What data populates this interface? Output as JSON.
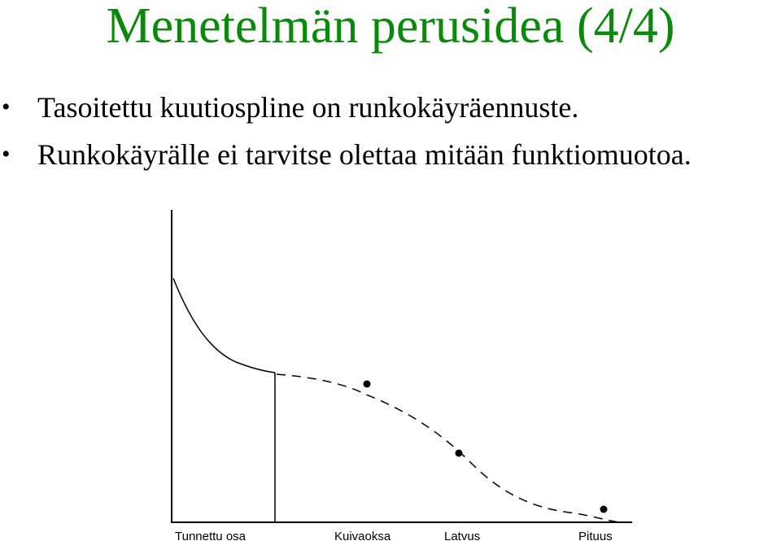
{
  "slide": {
    "title": "Menetelmän perusidea (4/4)",
    "bullets": [
      "Tasoitettu kuutiospline on runkokäyräennuste.",
      "Runkokäyrälle ei tarvitse olettaa mitään funktiomuotoa."
    ]
  },
  "diagram": {
    "x_labels": [
      "Tunnettu osa",
      "Kuivaoksa",
      "Latvus",
      "Pituus"
    ]
  },
  "colors": {
    "title": "#0a8a0a",
    "text": "#000000",
    "lines": "#000000"
  }
}
